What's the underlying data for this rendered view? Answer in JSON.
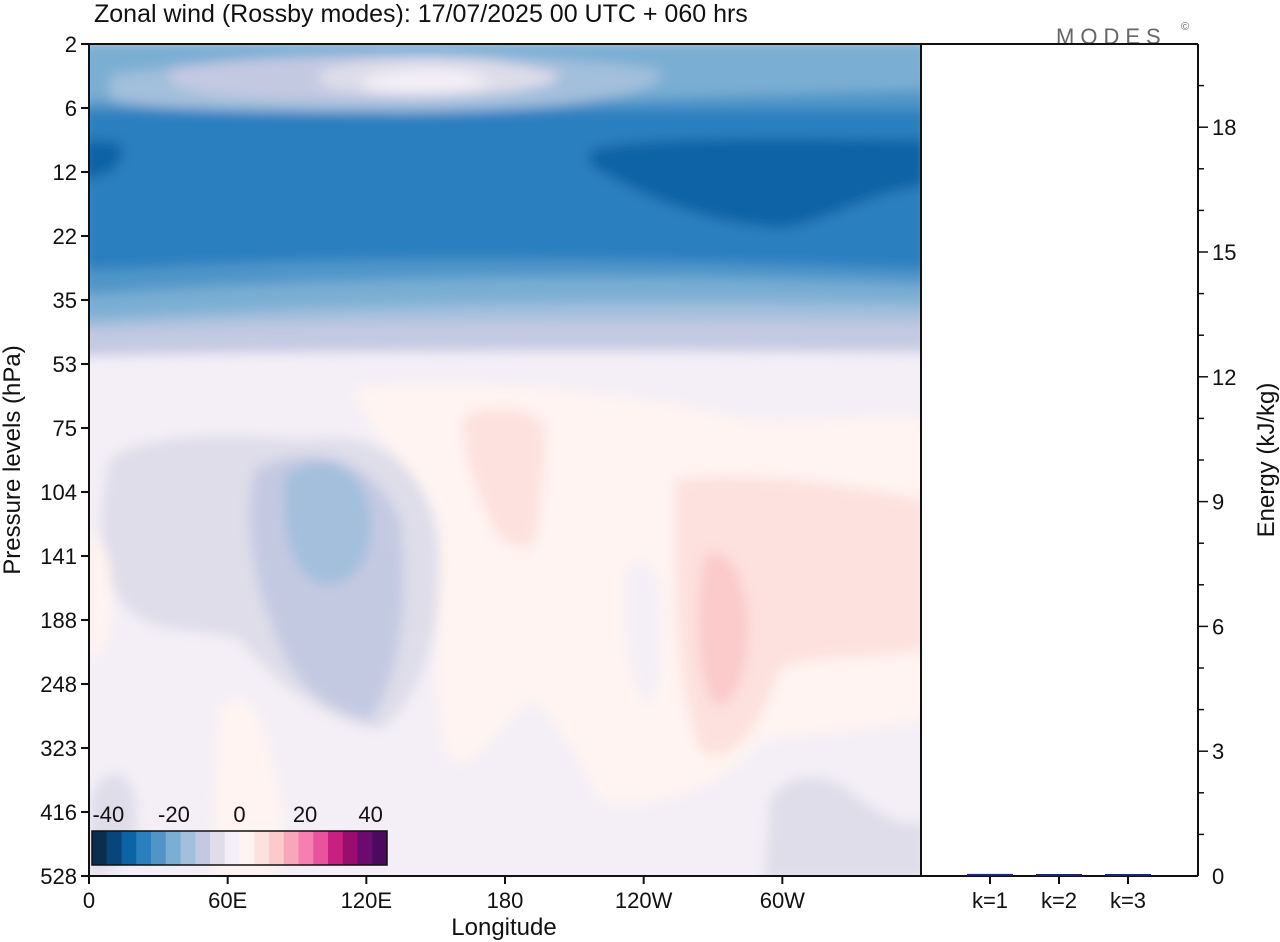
{
  "title": "Zonal wind (Rossby modes):  17/07/2025  00 UTC  + 060 hrs",
  "logo": "MODES",
  "logo_mark": "©",
  "chart_data": [
    {
      "type": "heatmap",
      "variable": "Zonal wind",
      "xlabel": "Longitude",
      "ylabel": "Pressure levels (hPa)",
      "x_ticks": [
        "0",
        "60E",
        "120E",
        "180",
        "120W",
        "60W"
      ],
      "y_ticks": [
        "2",
        "6",
        "12",
        "22",
        "35",
        "53",
        "75",
        "104",
        "141",
        "188",
        "248",
        "323",
        "416",
        "528"
      ],
      "y_scale": "log",
      "colorbar": {
        "labels": [
          "-40",
          "-20",
          "0",
          "20",
          "40"
        ],
        "range": [
          -45,
          45
        ],
        "colors": [
          "#0b2e4f",
          "#08457a",
          "#0a64a6",
          "#2b7fbf",
          "#4f95c8",
          "#7aaed3",
          "#a3bfdc",
          "#c4c9e2",
          "#dedde9",
          "#f4eff6",
          "#fff4f1",
          "#fde1de",
          "#fbcacb",
          "#f8a7ba",
          "#f47fb0",
          "#e8529f",
          "#c8207f",
          "#9a0c6e",
          "#6b0a6f",
          "#4b0a60"
        ]
      },
      "regions": [
        {
          "zone": "2-6 hPa upper band",
          "approx_value": -25
        },
        {
          "zone": "2-6 hPa weak core near 120E-180",
          "approx_value": -5
        },
        {
          "zone": "8-30 hPa strong easterlies",
          "approx_value": -38
        },
        {
          "zone": "30-50 hPa transition",
          "approx_value": -20
        },
        {
          "zone": "53-528 hPa background",
          "approx_value": 0
        },
        {
          "zone": "104-188 hPa minimum near 100E",
          "approx_value": -20
        },
        {
          "zone": "75-140 hPa positive near 180",
          "approx_value": 8
        },
        {
          "zone": "120-300 hPa maximum near 80W",
          "approx_value": 15
        }
      ]
    },
    {
      "type": "bar",
      "categories": [
        "k=1",
        "k=2",
        "k=3"
      ],
      "values": [
        0.05,
        0.02,
        0.01
      ],
      "ylabel": "Energy (kJ/kg)",
      "ylim": [
        0,
        20
      ],
      "y_ticks": [
        "0",
        "3",
        "6",
        "9",
        "12",
        "15",
        "18"
      ],
      "bar_color": "#1a237e"
    }
  ]
}
